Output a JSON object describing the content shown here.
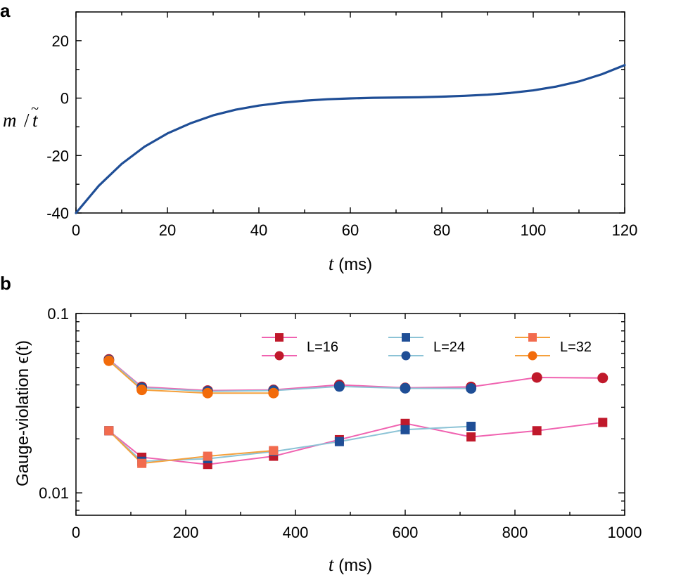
{
  "chart_data": [
    {
      "panel_label": "a",
      "type": "line",
      "xlabel_var": "t",
      "xlabel_unit": " (ms)",
      "ylabel_m": "m",
      "ylabel_slash": "/",
      "ylabel_t": "t",
      "ylabel_tilde": "~",
      "xlim": [
        0,
        120
      ],
      "ylim": [
        -40,
        30
      ],
      "xticks": [
        0,
        20,
        40,
        60,
        80,
        100,
        120
      ],
      "xtick_labels": [
        "0",
        "20",
        "40",
        "60",
        "80",
        "100",
        "120"
      ],
      "yticks": [
        -40,
        -20,
        0,
        20
      ],
      "ytick_labels": [
        "-40",
        "-20",
        "0",
        "20"
      ],
      "series": [
        {
          "name": "m/t",
          "color": "#1f4e96",
          "x": [
            0,
            5,
            10,
            15,
            20,
            25,
            30,
            35,
            40,
            45,
            50,
            55,
            60,
            65,
            70,
            75,
            80,
            85,
            90,
            95,
            100,
            105,
            110,
            115,
            120
          ],
          "y": [
            -40,
            -30.5,
            -22.9,
            -16.9,
            -12.3,
            -8.8,
            -6.0,
            -4.0,
            -2.6,
            -1.6,
            -0.9,
            -0.4,
            -0.1,
            0.1,
            0.2,
            0.3,
            0.5,
            0.8,
            1.2,
            1.8,
            2.7,
            4.0,
            5.8,
            8.3,
            11.5
          ]
        }
      ]
    },
    {
      "panel_label": "b",
      "type": "line",
      "scale_y": "log",
      "xlabel_var": "t",
      "xlabel_unit": " (ms)",
      "ylabel": "Gauge-violation ϵ(t)",
      "xlim": [
        0,
        1000
      ],
      "ylim": [
        0.0075,
        0.1
      ],
      "xticks": [
        0,
        200,
        400,
        600,
        800,
        1000
      ],
      "xtick_labels": [
        "0",
        "200",
        "400",
        "600",
        "800",
        "1000"
      ],
      "yticks": [
        0.01,
        0.1
      ],
      "ytick_labels": [
        "0.01",
        "0.1"
      ],
      "legend": [
        "L=16",
        "L=24",
        "L=32"
      ],
      "series": [
        {
          "name": "L=16 square",
          "marker": "square",
          "color": "#c0192b",
          "line_color": "#f062b0",
          "x": [
            60,
            120,
            240,
            360,
            480,
            600,
            720,
            840,
            960
          ],
          "y": [
            0.0222,
            0.0158,
            0.0144,
            0.016,
            0.0198,
            0.0244,
            0.0205,
            0.0222,
            0.0247
          ]
        },
        {
          "name": "L=16 circle",
          "marker": "circle",
          "color": "#c0192b",
          "line_color": "#f062b0",
          "x": [
            60,
            120,
            240,
            360,
            480,
            600,
            720,
            840,
            960
          ],
          "y": [
            0.0555,
            0.039,
            0.0372,
            0.0375,
            0.04,
            0.0385,
            0.039,
            0.044,
            0.0437
          ]
        },
        {
          "name": "L=24 square",
          "marker": "square",
          "color": "#1f4e96",
          "line_color": "#8cc3d6",
          "x": [
            60,
            120,
            240,
            360,
            480,
            600,
            720
          ],
          "y": [
            0.0222,
            0.015,
            0.0155,
            0.017,
            0.0193,
            0.0225,
            0.0235
          ]
        },
        {
          "name": "L=24 circle",
          "marker": "circle",
          "color": "#1f4e96",
          "line_color": "#8cc3d6",
          "x": [
            60,
            120,
            240,
            360,
            480,
            600,
            720
          ],
          "y": [
            0.055,
            0.0385,
            0.0368,
            0.0372,
            0.0392,
            0.0383,
            0.0382
          ]
        },
        {
          "name": "L=32 square",
          "marker": "square",
          "color": "#f26b4e",
          "line_color": "#f5a03c",
          "x": [
            60,
            120,
            240,
            360
          ],
          "y": [
            0.0222,
            0.0146,
            0.016,
            0.0172
          ]
        },
        {
          "name": "L=32 circle",
          "marker": "circle",
          "color": "#f26b0a",
          "line_color": "#f5a03c",
          "x": [
            60,
            120,
            240,
            360
          ],
          "y": [
            0.0545,
            0.0375,
            0.036,
            0.036
          ]
        }
      ]
    }
  ]
}
